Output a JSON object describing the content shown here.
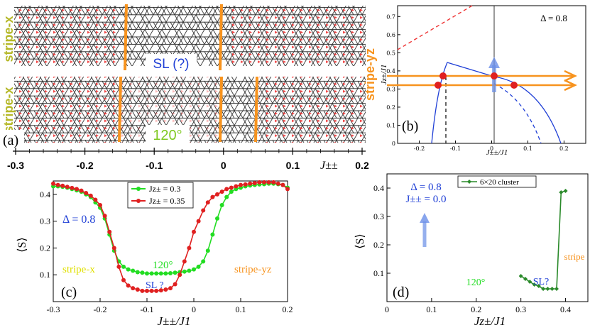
{
  "panel_a": {
    "label": "(a)",
    "phase_left_top": "stripe-x",
    "phase_left_bottom": "stripe-x",
    "phase_mid_top": "SL (?)",
    "phase_mid_bottom": "120°",
    "phase_right": "stripe-yz",
    "axis_label": "J±±",
    "ticks": [
      "-0.3",
      "-0.2",
      "-0.1",
      "0",
      "0.1",
      "0.2"
    ],
    "colors": {
      "stripe_x": "#b5b828",
      "stripe_yz": "#f7931e",
      "sl": "#1f3fd6",
      "deg120": "#7ec81f",
      "divider": "#f7931e"
    }
  },
  "panel_b": {
    "label": "(b)",
    "delta": "Δ = 0.8",
    "xlabel": "J±±/J1",
    "ylabel": "Jz±/J1",
    "xticks": [
      "-0.2",
      "-0.1",
      "0",
      "0.1",
      "0.2"
    ],
    "yticks": [
      "0",
      "0.1",
      "0.2",
      "0.3",
      "0.4",
      "0.5",
      "0.6",
      "0.7"
    ]
  },
  "panel_c": {
    "label": "(c)",
    "delta": "Δ = 0.8",
    "xlabel": "J±±/J1",
    "ylabel": "⟨S⟩",
    "legend": [
      "Jz± = 0.3",
      "Jz± = 0.35"
    ],
    "phase_left": "stripe-x",
    "phase_right": "stripe-yz",
    "phase_mid": "120°",
    "phase_sl": "SL ?",
    "chart_data": {
      "type": "line",
      "xlim": [
        -0.3,
        0.2
      ],
      "ylim": [
        0.0,
        0.45
      ],
      "xticks": [
        -0.3,
        -0.2,
        -0.1,
        0,
        0.1,
        0.2
      ],
      "yticks": [
        0.1,
        0.2,
        0.3,
        0.4
      ],
      "series": [
        {
          "name": "Jz± = 0.3",
          "color": "#22dd22",
          "x": [
            -0.3,
            -0.29,
            -0.28,
            -0.27,
            -0.26,
            -0.25,
            -0.24,
            -0.23,
            -0.22,
            -0.21,
            -0.2,
            -0.19,
            -0.18,
            -0.17,
            -0.16,
            -0.15,
            -0.14,
            -0.13,
            -0.12,
            -0.11,
            -0.1,
            -0.09,
            -0.08,
            -0.07,
            -0.06,
            -0.05,
            -0.04,
            -0.03,
            -0.02,
            -0.01,
            0,
            0.01,
            0.02,
            0.03,
            0.04,
            0.05,
            0.06,
            0.07,
            0.08,
            0.09,
            0.1,
            0.11,
            0.12,
            0.13,
            0.14,
            0.15,
            0.16,
            0.17,
            0.18,
            0.19,
            0.2
          ],
          "y": [
            0.43,
            0.43,
            0.428,
            0.425,
            0.42,
            0.415,
            0.41,
            0.4,
            0.39,
            0.37,
            0.35,
            0.31,
            0.25,
            0.19,
            0.15,
            0.13,
            0.12,
            0.115,
            0.11,
            0.108,
            0.105,
            0.105,
            0.105,
            0.105,
            0.105,
            0.106,
            0.108,
            0.11,
            0.112,
            0.115,
            0.12,
            0.13,
            0.15,
            0.19,
            0.25,
            0.31,
            0.36,
            0.39,
            0.41,
            0.42,
            0.425,
            0.43,
            0.433,
            0.435,
            0.437,
            0.438,
            0.44,
            0.44,
            0.438,
            0.435,
            0.425
          ]
        },
        {
          "name": "Jz± = 0.35",
          "color": "#e02020",
          "x": [
            -0.3,
            -0.29,
            -0.28,
            -0.27,
            -0.26,
            -0.25,
            -0.24,
            -0.23,
            -0.22,
            -0.21,
            -0.2,
            -0.19,
            -0.18,
            -0.17,
            -0.16,
            -0.15,
            -0.14,
            -0.13,
            -0.12,
            -0.11,
            -0.1,
            -0.09,
            -0.08,
            -0.07,
            -0.06,
            -0.05,
            -0.04,
            -0.03,
            -0.02,
            -0.01,
            0,
            0.01,
            0.02,
            0.03,
            0.04,
            0.05,
            0.06,
            0.07,
            0.08,
            0.09,
            0.1,
            0.11,
            0.12,
            0.13,
            0.14,
            0.15,
            0.16,
            0.17,
            0.18,
            0.19,
            0.2
          ],
          "y": [
            0.44,
            0.435,
            0.432,
            0.428,
            0.424,
            0.42,
            0.414,
            0.405,
            0.395,
            0.38,
            0.36,
            0.32,
            0.26,
            0.2,
            0.13,
            0.08,
            0.06,
            0.05,
            0.045,
            0.04,
            0.04,
            0.04,
            0.04,
            0.042,
            0.045,
            0.05,
            0.065,
            0.1,
            0.15,
            0.2,
            0.26,
            0.3,
            0.34,
            0.37,
            0.39,
            0.4,
            0.41,
            0.42,
            0.425,
            0.43,
            0.435,
            0.437,
            0.44,
            0.442,
            0.445,
            0.445,
            0.445,
            0.445,
            0.44,
            0.435,
            0.42
          ]
        }
      ]
    }
  },
  "panel_d": {
    "label": "(d)",
    "legend": "6×20 cluster",
    "delta": "Δ = 0.8",
    "jpm": "J±± = 0.0",
    "xlabel": "Jz±/J1",
    "ylabel": "⟨S⟩",
    "phase_120": "120°",
    "phase_sl": "SL?",
    "phase_stripe": "stripe",
    "chart_data": {
      "type": "line",
      "xlim": [
        0,
        0.45
      ],
      "ylim": [
        0,
        0.45
      ],
      "xticks": [
        0,
        0.1,
        0.2,
        0.3,
        0.4
      ],
      "yticks": [
        0.1,
        0.2,
        0.3,
        0.4
      ],
      "series": [
        {
          "name": "6×20 cluster",
          "color": "#2a8a2a",
          "x": [
            0.3,
            0.31,
            0.32,
            0.33,
            0.34,
            0.35,
            0.36,
            0.37,
            0.38,
            0.39,
            0.4
          ],
          "y": [
            0.09,
            0.08,
            0.07,
            0.06,
            0.055,
            0.045,
            0.045,
            0.045,
            0.045,
            0.385,
            0.39
          ]
        }
      ]
    }
  }
}
